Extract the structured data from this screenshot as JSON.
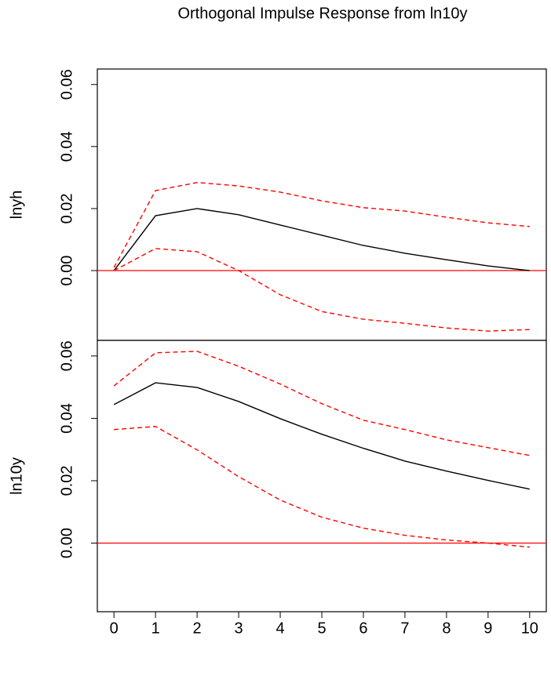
{
  "chart_data": [
    {
      "type": "line",
      "title": "Orthogonal Impulse Response from ln10y",
      "ylabel": "lnyh",
      "x": [
        0,
        1,
        2,
        3,
        4,
        5,
        6,
        7,
        8,
        9,
        10
      ],
      "xlim": [
        -0.4,
        10.4
      ],
      "ylim": [
        -0.0225,
        0.065
      ],
      "yticks": [
        {
          "value": 0,
          "label": "0.00"
        },
        {
          "value": 0.02,
          "label": "0.02"
        },
        {
          "value": 0.04,
          "label": "0.04"
        },
        {
          "value": 0.06,
          "label": "0.06"
        }
      ],
      "hline": 0,
      "hline_color": "#ff0000",
      "series": [
        {
          "color": "#000000",
          "linestyle": "solid",
          "values": [
            0,
            0.0177,
            0.02,
            0.018,
            0.0147,
            0.0114,
            0.0081,
            0.0056,
            0.0035,
            0.0015,
            0
          ]
        },
        {
          "color": "#ff0000",
          "linestyle": "dashed",
          "values": [
            0.001,
            0.0258,
            0.0284,
            0.0273,
            0.0253,
            0.0225,
            0.0203,
            0.0192,
            0.0172,
            0.0154,
            0.0142
          ]
        },
        {
          "color": "#ff0000",
          "linestyle": "dashed",
          "values": [
            0,
            0.0071,
            0.0061,
            0,
            -0.0078,
            -0.0132,
            -0.0157,
            -0.017,
            -0.0185,
            -0.0195,
            -0.019
          ]
        }
      ]
    },
    {
      "type": "line",
      "ylabel": "ln10y",
      "x": [
        0,
        1,
        2,
        3,
        4,
        5,
        6,
        7,
        8,
        9,
        10
      ],
      "xlim": [
        -0.4,
        10.4
      ],
      "xticks": [
        0,
        1,
        2,
        3,
        4,
        5,
        6,
        7,
        8,
        9,
        10
      ],
      "ylim": [
        -0.022,
        0.065
      ],
      "yticks": [
        {
          "value": 0,
          "label": "0.00"
        },
        {
          "value": 0.02,
          "label": "0.02"
        },
        {
          "value": 0.04,
          "label": "0.04"
        },
        {
          "value": 0.06,
          "label": "0.06"
        }
      ],
      "hline": 0,
      "hline_color": "#ff0000",
      "series": [
        {
          "color": "#000000",
          "linestyle": "solid",
          "values": [
            0.0444,
            0.0514,
            0.0499,
            0.0454,
            0.0399,
            0.0349,
            0.0304,
            0.0263,
            0.0231,
            0.0201,
            0.0173
          ]
        },
        {
          "color": "#ff0000",
          "linestyle": "dashed",
          "values": [
            0.0504,
            0.061,
            0.0615,
            0.0567,
            0.051,
            0.0447,
            0.0394,
            0.0364,
            0.0331,
            0.0306,
            0.0281
          ]
        },
        {
          "color": "#ff0000",
          "linestyle": "dashed",
          "values": [
            0.0364,
            0.0374,
            0.0299,
            0.0213,
            0.0138,
            0.0083,
            0.0048,
            0.0025,
            0.001,
            0,
            -0.0013
          ]
        }
      ]
    }
  ]
}
